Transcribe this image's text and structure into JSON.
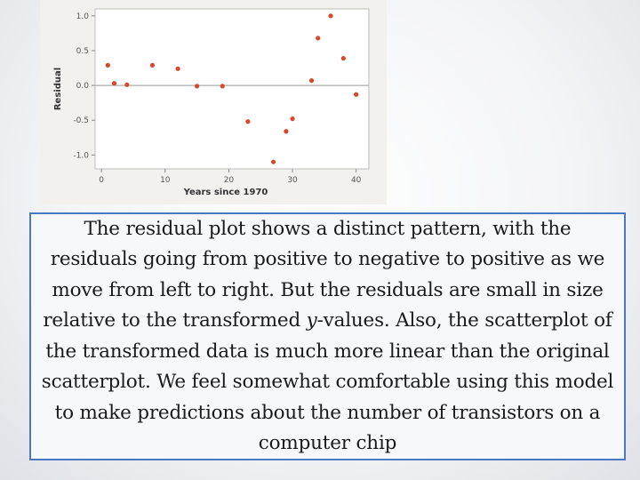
{
  "chart_data": {
    "type": "scatter",
    "title": "",
    "xlabel": "Years since 1970",
    "ylabel": "Residual",
    "xlim": [
      -1,
      42
    ],
    "ylim": [
      -1.2,
      1.1
    ],
    "xticks": [
      0,
      10,
      20,
      30,
      40
    ],
    "yticks": [
      1.0,
      0.5,
      0.0,
      -0.5,
      -1.0
    ],
    "xtick_labels": [
      "0",
      "10",
      "20",
      "30",
      "40"
    ],
    "ytick_labels": [
      "1.0",
      "0.5",
      "0.0",
      "-0.5",
      "-1.0"
    ],
    "reference_line": 0.0,
    "grid": false,
    "point_color": "#d9482b",
    "points": [
      {
        "x": 1,
        "y": 0.29
      },
      {
        "x": 2,
        "y": 0.03
      },
      {
        "x": 4,
        "y": 0.01
      },
      {
        "x": 8,
        "y": 0.29
      },
      {
        "x": 12,
        "y": 0.24
      },
      {
        "x": 15,
        "y": -0.01
      },
      {
        "x": 19,
        "y": -0.01
      },
      {
        "x": 23,
        "y": -0.52
      },
      {
        "x": 27,
        "y": -1.1
      },
      {
        "x": 29,
        "y": -0.66
      },
      {
        "x": 30,
        "y": -0.48
      },
      {
        "x": 33,
        "y": 0.07
      },
      {
        "x": 34,
        "y": 0.68
      },
      {
        "x": 36,
        "y": 1.0
      },
      {
        "x": 38,
        "y": 0.39
      },
      {
        "x": 40,
        "y": -0.13
      }
    ]
  },
  "text": {
    "part1": "The residual plot shows a distinct pattern, with the residuals going from positive to negative to positive as we move from left to right. But the residuals are small in size relative to the transformed ",
    "variable": "y",
    "part2": "-values. Also, the scatterplot of the transformed data is much more linear than the original scatterplot. We feel somewhat comfortable using this model to make predictions about the number of transistors on a computer chip"
  }
}
